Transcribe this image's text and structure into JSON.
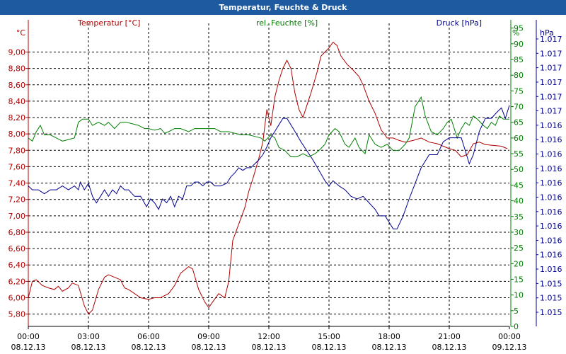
{
  "chart_data": {
    "type": "line",
    "title": "Temperatur, Feuchte & Druck",
    "legend": [
      "Temperatur [°C]",
      "rel. Feuchte [%]",
      "Druck [hPa]"
    ],
    "axes": {
      "left": {
        "unit": "°C",
        "range": [
          5.65,
          9.35
        ],
        "ticks": [
          "5,80",
          "6,00",
          "6,20",
          "6,40",
          "6,60",
          "6,80",
          "7,00",
          "7,20",
          "7,40",
          "7,60",
          "7,80",
          "8,00",
          "8,20",
          "8,40",
          "8,60",
          "8,80",
          "9,00"
        ]
      },
      "right1": {
        "unit": "%",
        "range": [
          0,
          96.5
        ],
        "ticks": [
          "0",
          "5",
          "10",
          "15",
          "20",
          "25",
          "30",
          "35",
          "40",
          "45",
          "50",
          "55",
          "60",
          "65",
          "70",
          "75",
          "80",
          "85",
          "90",
          "95"
        ]
      },
      "right2": {
        "unit": "hPa",
        "range": [
          1.015,
          1.01733
        ],
        "ticks": [
          "1.015",
          "1.015",
          "1.015",
          "1.016",
          "1.016",
          "1.016",
          "1.016",
          "1.016",
          "1.016",
          "1.016",
          "1.016",
          "1.016",
          "1.016",
          "1.016",
          "1.017",
          "1.017",
          "1.017",
          "1.017",
          "1.017",
          "1.017"
        ]
      }
    },
    "x_range": [
      0,
      24
    ],
    "x_ticks": [
      {
        "time": "00:00",
        "date": "08.12.13"
      },
      {
        "time": "03:00",
        "date": "08.12.13"
      },
      {
        "time": "06:00",
        "date": "08.12.13"
      },
      {
        "time": "09:00",
        "date": "08.12.13"
      },
      {
        "time": "12:00",
        "date": "08.12.13"
      },
      {
        "time": "15:00",
        "date": "08.12.13"
      },
      {
        "time": "18:00",
        "date": "08.12.13"
      },
      {
        "time": "21:00",
        "date": "08.12.13"
      },
      {
        "time": "00:00",
        "date": "09.12.13"
      }
    ],
    "grid": true,
    "series": [
      {
        "name": "Temperatur [°C]",
        "axis": "left",
        "color": "#b00000",
        "points": [
          [
            0,
            6.0
          ],
          [
            0.2,
            6.2
          ],
          [
            0.4,
            6.22
          ],
          [
            0.7,
            6.15
          ],
          [
            1.0,
            6.12
          ],
          [
            1.3,
            6.1
          ],
          [
            1.5,
            6.14
          ],
          [
            1.7,
            6.08
          ],
          [
            2.0,
            6.12
          ],
          [
            2.2,
            6.18
          ],
          [
            2.5,
            6.15
          ],
          [
            2.8,
            5.9
          ],
          [
            3.0,
            5.8
          ],
          [
            3.2,
            5.85
          ],
          [
            3.5,
            6.1
          ],
          [
            3.8,
            6.25
          ],
          [
            4.0,
            6.28
          ],
          [
            4.3,
            6.25
          ],
          [
            4.6,
            6.22
          ],
          [
            4.8,
            6.12
          ],
          [
            5.0,
            6.1
          ],
          [
            5.3,
            6.05
          ],
          [
            5.6,
            6.0
          ],
          [
            6.0,
            5.98
          ],
          [
            6.3,
            6.0
          ],
          [
            6.6,
            6.0
          ],
          [
            7.0,
            6.05
          ],
          [
            7.3,
            6.15
          ],
          [
            7.6,
            6.3
          ],
          [
            8.0,
            6.38
          ],
          [
            8.2,
            6.35
          ],
          [
            8.5,
            6.1
          ],
          [
            8.8,
            5.95
          ],
          [
            9.0,
            5.88
          ],
          [
            9.2,
            5.95
          ],
          [
            9.5,
            6.05
          ],
          [
            9.8,
            6.0
          ],
          [
            10.0,
            6.2
          ],
          [
            10.2,
            6.7
          ],
          [
            10.5,
            6.9
          ],
          [
            10.8,
            7.1
          ],
          [
            11.0,
            7.3
          ],
          [
            11.2,
            7.45
          ],
          [
            11.5,
            7.7
          ],
          [
            11.7,
            7.9
          ],
          [
            11.9,
            8.3
          ],
          [
            12.1,
            8.1
          ],
          [
            12.3,
            8.45
          ],
          [
            12.5,
            8.65
          ],
          [
            12.7,
            8.8
          ],
          [
            12.9,
            8.9
          ],
          [
            13.1,
            8.8
          ],
          [
            13.3,
            8.5
          ],
          [
            13.5,
            8.3
          ],
          [
            13.7,
            8.2
          ],
          [
            13.9,
            8.35
          ],
          [
            14.1,
            8.5
          ],
          [
            14.4,
            8.75
          ],
          [
            14.6,
            8.95
          ],
          [
            14.8,
            9.0
          ],
          [
            15.0,
            9.05
          ],
          [
            15.2,
            9.12
          ],
          [
            15.4,
            9.08
          ],
          [
            15.6,
            8.95
          ],
          [
            15.9,
            8.85
          ],
          [
            16.2,
            8.78
          ],
          [
            16.5,
            8.7
          ],
          [
            16.7,
            8.6
          ],
          [
            17.0,
            8.4
          ],
          [
            17.3,
            8.25
          ],
          [
            17.6,
            8.05
          ],
          [
            17.9,
            7.95
          ],
          [
            18.2,
            7.95
          ],
          [
            18.5,
            7.92
          ],
          [
            18.8,
            7.9
          ],
          [
            19.2,
            7.92
          ],
          [
            19.6,
            7.95
          ],
          [
            20.0,
            7.9
          ],
          [
            20.4,
            7.88
          ],
          [
            20.7,
            7.85
          ],
          [
            21.0,
            7.82
          ],
          [
            21.3,
            7.8
          ],
          [
            21.6,
            7.72
          ],
          [
            21.9,
            7.75
          ],
          [
            22.2,
            7.88
          ],
          [
            22.5,
            7.9
          ],
          [
            22.8,
            7.87
          ],
          [
            23.2,
            7.86
          ],
          [
            23.6,
            7.85
          ],
          [
            23.9,
            7.82
          ]
        ]
      },
      {
        "name": "rel. Feuchte [%]",
        "axis": "right1",
        "color": "#008000",
        "points": [
          [
            0,
            60
          ],
          [
            0.2,
            59
          ],
          [
            0.4,
            62
          ],
          [
            0.6,
            64
          ],
          [
            0.8,
            61
          ],
          [
            1.1,
            61
          ],
          [
            1.4,
            60
          ],
          [
            1.7,
            59
          ],
          [
            2.0,
            59.5
          ],
          [
            2.3,
            60
          ],
          [
            2.5,
            65
          ],
          [
            2.7,
            66
          ],
          [
            3.0,
            66
          ],
          [
            3.2,
            64
          ],
          [
            3.5,
            65
          ],
          [
            3.8,
            64
          ],
          [
            4.0,
            65
          ],
          [
            4.3,
            63
          ],
          [
            4.6,
            65
          ],
          [
            4.9,
            65
          ],
          [
            5.2,
            64.5
          ],
          [
            5.5,
            64
          ],
          [
            5.8,
            63
          ],
          [
            6.0,
            63
          ],
          [
            6.3,
            62.5
          ],
          [
            6.6,
            63
          ],
          [
            6.8,
            61.5
          ],
          [
            7.0,
            62
          ],
          [
            7.3,
            63
          ],
          [
            7.6,
            63
          ],
          [
            8.0,
            62
          ],
          [
            8.3,
            63
          ],
          [
            8.6,
            63
          ],
          [
            9.0,
            63
          ],
          [
            9.3,
            63
          ],
          [
            9.6,
            62
          ],
          [
            10.0,
            62
          ],
          [
            10.3,
            61.5
          ],
          [
            10.6,
            61
          ],
          [
            11.0,
            61
          ],
          [
            11.3,
            60.5
          ],
          [
            11.6,
            60
          ],
          [
            11.8,
            59
          ],
          [
            12.1,
            61
          ],
          [
            12.3,
            60
          ],
          [
            12.5,
            57
          ],
          [
            12.8,
            56
          ],
          [
            13.1,
            54
          ],
          [
            13.4,
            54
          ],
          [
            13.7,
            55
          ],
          [
            14.0,
            54
          ],
          [
            14.3,
            55
          ],
          [
            14.5,
            56
          ],
          [
            14.8,
            58
          ],
          [
            15.0,
            61
          ],
          [
            15.3,
            63
          ],
          [
            15.5,
            62
          ],
          [
            15.8,
            58
          ],
          [
            16.0,
            57
          ],
          [
            16.3,
            60
          ],
          [
            16.5,
            57
          ],
          [
            16.8,
            55
          ],
          [
            17.0,
            61
          ],
          [
            17.3,
            58
          ],
          [
            17.6,
            57
          ],
          [
            17.9,
            58
          ],
          [
            18.2,
            56
          ],
          [
            18.5,
            56
          ],
          [
            18.8,
            58
          ],
          [
            19.0,
            60
          ],
          [
            19.3,
            70
          ],
          [
            19.6,
            73
          ],
          [
            19.8,
            67
          ],
          [
            20.1,
            62
          ],
          [
            20.4,
            61
          ],
          [
            20.7,
            63
          ],
          [
            20.9,
            65
          ],
          [
            21.1,
            66
          ],
          [
            21.4,
            60
          ],
          [
            21.6,
            63
          ],
          [
            21.8,
            65
          ],
          [
            22.0,
            64
          ],
          [
            22.2,
            67
          ],
          [
            22.4,
            66
          ],
          [
            22.7,
            64
          ],
          [
            22.9,
            63
          ],
          [
            23.1,
            65
          ],
          [
            23.3,
            64
          ],
          [
            23.5,
            67
          ],
          [
            23.7,
            66
          ],
          [
            24.0,
            66
          ]
        ]
      },
      {
        "name": "Druck [hPa]",
        "axis": "right2",
        "color": "#000090",
        "points": [
          [
            0,
            1.01608
          ],
          [
            0.2,
            1.01605
          ],
          [
            0.5,
            1.01605
          ],
          [
            0.8,
            1.01602
          ],
          [
            1.1,
            1.01605
          ],
          [
            1.4,
            1.01605
          ],
          [
            1.7,
            1.01608
          ],
          [
            2.0,
            1.01605
          ],
          [
            2.3,
            1.01608
          ],
          [
            2.5,
            1.01605
          ],
          [
            2.6,
            1.01611
          ],
          [
            2.8,
            1.01605
          ],
          [
            3.0,
            1.0161
          ],
          [
            3.2,
            1.016
          ],
          [
            3.4,
            1.01595
          ],
          [
            3.6,
            1.016
          ],
          [
            3.8,
            1.01605
          ],
          [
            4.0,
            1.016
          ],
          [
            4.2,
            1.01605
          ],
          [
            4.4,
            1.01602
          ],
          [
            4.6,
            1.01608
          ],
          [
            4.8,
            1.01605
          ],
          [
            5.0,
            1.01605
          ],
          [
            5.3,
            1.016
          ],
          [
            5.6,
            1.016
          ],
          [
            5.9,
            1.01592
          ],
          [
            6.1,
            1.01598
          ],
          [
            6.3,
            1.01595
          ],
          [
            6.5,
            1.0159
          ],
          [
            6.7,
            1.01598
          ],
          [
            6.9,
            1.01595
          ],
          [
            7.1,
            1.016
          ],
          [
            7.3,
            1.01592
          ],
          [
            7.5,
            1.016
          ],
          [
            7.7,
            1.01598
          ],
          [
            7.9,
            1.01608
          ],
          [
            8.1,
            1.01608
          ],
          [
            8.3,
            1.01611
          ],
          [
            8.5,
            1.01611
          ],
          [
            8.7,
            1.01608
          ],
          [
            8.9,
            1.01611
          ],
          [
            9.1,
            1.01611
          ],
          [
            9.3,
            1.01608
          ],
          [
            9.6,
            1.01608
          ],
          [
            9.9,
            1.0161
          ],
          [
            10.1,
            1.01615
          ],
          [
            10.3,
            1.01618
          ],
          [
            10.5,
            1.01622
          ],
          [
            10.7,
            1.0162
          ],
          [
            10.9,
            1.01622
          ],
          [
            11.1,
            1.01622
          ],
          [
            11.3,
            1.01625
          ],
          [
            11.5,
            1.01628
          ],
          [
            11.7,
            1.01632
          ],
          [
            11.9,
            1.01638
          ],
          [
            12.1,
            1.01645
          ],
          [
            12.3,
            1.0165
          ],
          [
            12.5,
            1.01655
          ],
          [
            12.7,
            1.0166
          ],
          [
            12.9,
            1.0166
          ],
          [
            13.1,
            1.01655
          ],
          [
            13.3,
            1.0165
          ],
          [
            13.6,
            1.01642
          ],
          [
            13.9,
            1.01635
          ],
          [
            14.2,
            1.01628
          ],
          [
            14.5,
            1.0162
          ],
          [
            14.8,
            1.01612
          ],
          [
            15.0,
            1.01608
          ],
          [
            15.2,
            1.01612
          ],
          [
            15.5,
            1.01608
          ],
          [
            15.8,
            1.01605
          ],
          [
            16.1,
            1.016
          ],
          [
            16.4,
            1.01598
          ],
          [
            16.7,
            1.016
          ],
          [
            17.0,
            1.01595
          ],
          [
            17.3,
            1.0159
          ],
          [
            17.5,
            1.01585
          ],
          [
            17.8,
            1.01585
          ],
          [
            18.0,
            1.0158
          ],
          [
            18.2,
            1.01575
          ],
          [
            18.4,
            1.01575
          ],
          [
            18.7,
            1.01585
          ],
          [
            19.0,
            1.01598
          ],
          [
            19.3,
            1.0161
          ],
          [
            19.6,
            1.01622
          ],
          [
            20.0,
            1.01632
          ],
          [
            20.4,
            1.01632
          ],
          [
            20.7,
            1.01642
          ],
          [
            21.0,
            1.01645
          ],
          [
            21.3,
            1.01645
          ],
          [
            21.6,
            1.01645
          ],
          [
            21.8,
            1.01635
          ],
          [
            22.0,
            1.01625
          ],
          [
            22.2,
            1.01632
          ],
          [
            22.5,
            1.0165
          ],
          [
            22.8,
            1.0166
          ],
          [
            23.1,
            1.0166
          ],
          [
            23.4,
            1.01665
          ],
          [
            23.6,
            1.01668
          ],
          [
            23.8,
            1.0166
          ],
          [
            24.0,
            1.0167
          ]
        ]
      }
    ]
  }
}
